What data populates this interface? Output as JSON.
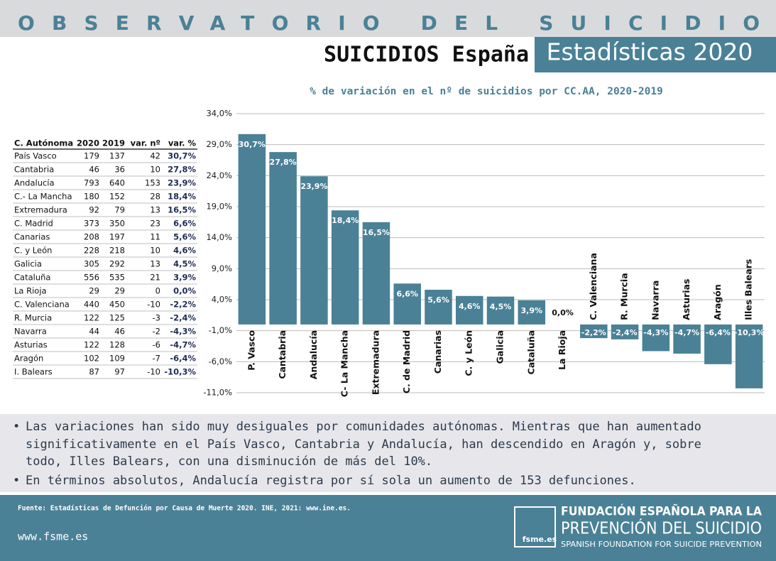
{
  "header": {
    "title": "OBSERVATORIO DEL SUICIDIO",
    "subtitle": "SUICIDIOS España",
    "badge": "Estadísticas 2020"
  },
  "table": {
    "headers": [
      "C. Autónoma",
      "2020",
      "2019",
      "var. nº",
      "var. %"
    ],
    "rows": [
      [
        "País Vasco",
        "179",
        "137",
        "42",
        "30,7%"
      ],
      [
        "Cantabria",
        "46",
        "36",
        "10",
        "27,8%"
      ],
      [
        "Andalucía",
        "793",
        "640",
        "153",
        "23,9%"
      ],
      [
        "C.- La Mancha",
        "180",
        "152",
        "28",
        "18,4%"
      ],
      [
        "Extremadura",
        "92",
        "79",
        "13",
        "16,5%"
      ],
      [
        "C. Madrid",
        "373",
        "350",
        "23",
        "6,6%"
      ],
      [
        "Canarias",
        "208",
        "197",
        "11",
        "5,6%"
      ],
      [
        "C. y León",
        "228",
        "218",
        "10",
        "4,6%"
      ],
      [
        "Galicia",
        "305",
        "292",
        "13",
        "4,5%"
      ],
      [
        "Cataluña",
        "556",
        "535",
        "21",
        "3,9%"
      ],
      [
        "La Rioja",
        "29",
        "29",
        "0",
        "0,0%"
      ],
      [
        "C. Valenciana",
        "440",
        "450",
        "-10",
        "-2,2%"
      ],
      [
        "R. Murcia",
        "122",
        "125",
        "-3",
        "-2,4%"
      ],
      [
        "Navarra",
        "44",
        "46",
        "-2",
        "-4,3%"
      ],
      [
        "Asturias",
        "122",
        "128",
        "-6",
        "-4,7%"
      ],
      [
        "Aragón",
        "102",
        "109",
        "-7",
        "-6,4%"
      ],
      [
        "I. Balears",
        "87",
        "97",
        "-10",
        "-10,3%"
      ]
    ]
  },
  "chart_data": {
    "type": "bar",
    "title": "% de variación en el nº de suicidios por CC.AA, 2020-2019",
    "categories": [
      "P. Vasco",
      "Cantabria",
      "Andalucía",
      "C- La Mancha",
      "Extremadura",
      "C. de Madrid",
      "Canarias",
      "C. y León",
      "Galicia",
      "Cataluña",
      "La Rioja",
      "C. Valenciana",
      "R. Murcia",
      "Navarra",
      "Asturias",
      "Aragón",
      "Illes Balears"
    ],
    "values": [
      30.7,
      27.8,
      23.9,
      18.4,
      16.5,
      6.6,
      5.6,
      4.6,
      4.5,
      3.9,
      0.0,
      -2.2,
      -2.4,
      -4.3,
      -4.7,
      -6.4,
      -10.3
    ],
    "value_labels": [
      "30,7%",
      "27,8%",
      "23,9%",
      "18,4%",
      "16,5%",
      "6,6%",
      "5,6%",
      "4,6%",
      "4,5%",
      "3,9%",
      "0,0%",
      "-2,2%",
      "-2,4%",
      "-4,3%",
      "-4,7%",
      "-6,4%",
      "-10,3%"
    ],
    "color": "#4a8196",
    "ylim": [
      -11,
      34
    ],
    "yticks": [
      {
        "value": 34,
        "label": "34,0%"
      },
      {
        "value": 29,
        "label": "29,0%"
      },
      {
        "value": 24,
        "label": "24,0%"
      },
      {
        "value": 19,
        "label": "19,0%"
      },
      {
        "value": 14,
        "label": "14,0%"
      },
      {
        "value": 9,
        "label": "9,0%"
      },
      {
        "value": 4,
        "label": "4,0%"
      },
      {
        "value": -1,
        "label": "-1,0%"
      },
      {
        "value": -6,
        "label": "-6,0%"
      },
      {
        "value": -11,
        "label": "-11,0%"
      }
    ],
    "grid": true
  },
  "notes": [
    "Las variaciones han sido muy desiguales por comunidades autónomas. Mientras que han aumentado significativamente en el País Vasco, Cantabria y Andalucía, han descendido en Aragón y, sobre todo, Illes Balears, con una disminución de más del 10%.",
    "En términos absolutos, Andalucía registra por sí sola un aumento de 153 defunciones."
  ],
  "footer": {
    "source": "Fuente: Estadísticas de Defunción por Causa de Muerte 2020. INE, 2021: www.ine.es.",
    "website": "www.fsme.es",
    "logo": "fsme.es",
    "org_line1": "FUNDACIÓN ESPAÑOLA PARA LA",
    "org_line2": "PREVENCIÓN DEL SUICIDIO",
    "org_line3": "SPANISH FOUNDATION FOR SUICIDE PREVENTION"
  }
}
